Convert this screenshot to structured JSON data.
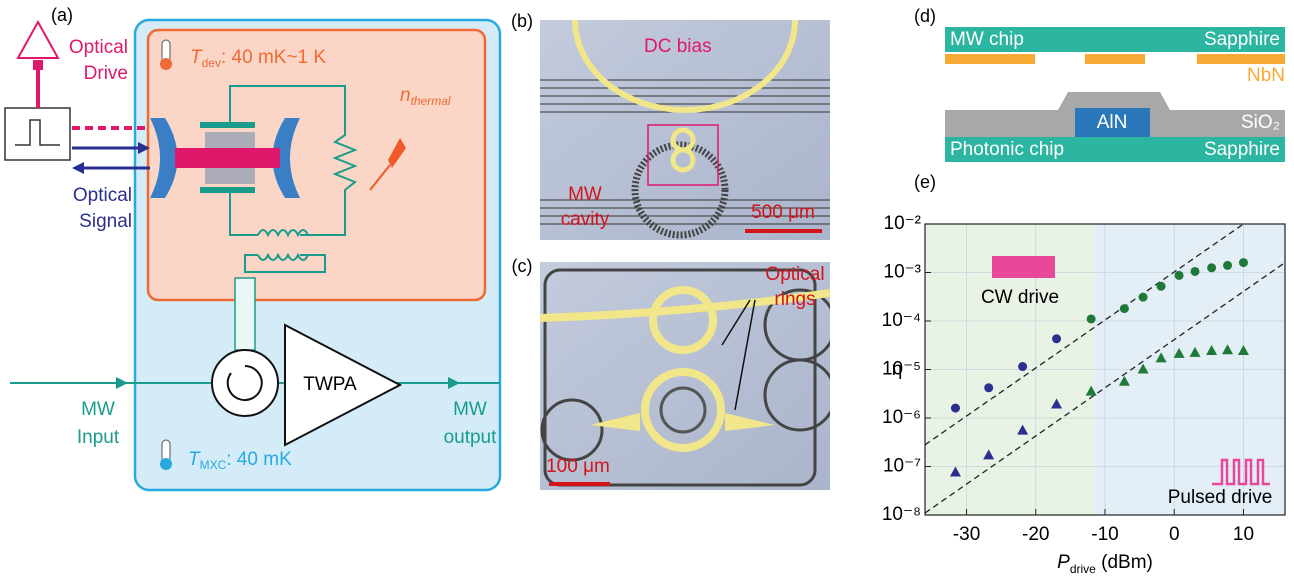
{
  "panel_labels": [
    "(a)",
    "(b)",
    "(c)",
    "(d)",
    "(e)"
  ],
  "a": {
    "optical_drive": [
      "Optical",
      "Drive"
    ],
    "t_dev": {
      "symbol": "T",
      "sub": "dev",
      "text": ": 40 mK~1 K"
    },
    "n_thermal": {
      "symbol": "n",
      "sub": "thermal"
    },
    "optical_signal": [
      "Optical",
      "Signal"
    ],
    "mw_input": [
      "MW",
      "Input"
    ],
    "twpa": "TWPA",
    "mw_output": [
      "MW",
      "output"
    ],
    "t_mxc": {
      "symbol": "T",
      "sub": "MXC",
      "text": ": 40 mK"
    }
  },
  "b": {
    "dc_bias": "DC bias",
    "mw_cavity": [
      "MW",
      "cavity"
    ],
    "scale": "500 μm"
  },
  "c": {
    "optical_rings": [
      "Optical",
      "rings"
    ],
    "scale": "100 μm"
  },
  "d": {
    "mw_chip": "MW chip",
    "sapphire_top": "Sapphire",
    "nbn": "NbN",
    "aln": "AlN",
    "sio2": "SiO₂",
    "photonic_chip": "Photonic chip",
    "sapphire_bottom": "Sapphire"
  },
  "chart_data": {
    "type": "scatter",
    "ylabel": "η",
    "xlabel": {
      "symbol": "P",
      "sub": "drive",
      "unit": " (dBm)"
    },
    "ylog": true,
    "grid": true,
    "xlim": [
      -36,
      16
    ],
    "ylim": [
      1e-08,
      0.01
    ],
    "xticks": [
      -30,
      -20,
      -10,
      0,
      10
    ],
    "yticks": [
      {
        "value": 1e-08,
        "label": "10⁻⁸"
      },
      {
        "value": 1e-07,
        "label": "10⁻⁷"
      },
      {
        "value": 1e-06,
        "label": "10⁻⁶"
      },
      {
        "value": 1e-05,
        "label": "10⁻⁵"
      },
      {
        "value": 0.0001,
        "label": "10⁻⁴"
      },
      {
        "value": 0.001,
        "label": "10⁻³"
      },
      {
        "value": 0.01,
        "label": "10⁻²"
      }
    ],
    "regions": [
      {
        "from": -36,
        "to": -11.6,
        "color": "#e8f3e5"
      },
      {
        "from": -11.6,
        "to": 16,
        "color": "#e3eef6"
      }
    ],
    "fit_lines": [
      {
        "x": [
          -36,
          10
        ],
        "values": [
          2.8e-07,
          0.01
        ]
      },
      {
        "x": [
          -36,
          16
        ],
        "values": [
          1.1e-08,
          0.0016
        ]
      }
    ],
    "series": [
      {
        "marker": "circle",
        "x": [
          -31.6,
          -26.8,
          -21.9,
          -17,
          -12,
          -7.2,
          -4.5,
          -1.9,
          0.7,
          3,
          5.4,
          7.7,
          10
        ],
        "values": [
          1.6e-06,
          4.2e-06,
          1.15e-05,
          4.3e-05,
          0.00011,
          0.00018,
          0.00031,
          0.00052,
          0.00087,
          0.00105,
          0.00125,
          0.0014,
          0.0016
        ],
        "colors": [
          "#2b2f8f",
          "#2b2f8f",
          "#2b2f8f",
          "#2b2f8f",
          "#1f7a3a",
          "#1f7a3a",
          "#1f7a3a",
          "#1f7a3a",
          "#1f7a3a",
          "#1f7a3a",
          "#1f7a3a",
          "#1f7a3a",
          "#1f7a3a"
        ]
      },
      {
        "marker": "triangle",
        "x": [
          -31.6,
          -26.8,
          -21.9,
          -17,
          -12,
          -7.2,
          -4.5,
          -1.9,
          0.7,
          3,
          5.4,
          7.7,
          10
        ],
        "values": [
          7.5e-08,
          1.7e-07,
          5.5e-07,
          1.9e-06,
          3.5e-06,
          5.6e-06,
          1e-05,
          1.7e-05,
          2.1e-05,
          2.2e-05,
          2.4e-05,
          2.5e-05,
          2.4e-05
        ],
        "colors": [
          "#2b2f8f",
          "#2b2f8f",
          "#2b2f8f",
          "#2b2f8f",
          "#1f7a3a",
          "#1f7a3a",
          "#1f7a3a",
          "#1f7a3a",
          "#1f7a3a",
          "#1f7a3a",
          "#1f7a3a",
          "#1f7a3a",
          "#1f7a3a"
        ]
      }
    ],
    "annotations": [
      "CW drive",
      "Pulsed drive"
    ]
  }
}
